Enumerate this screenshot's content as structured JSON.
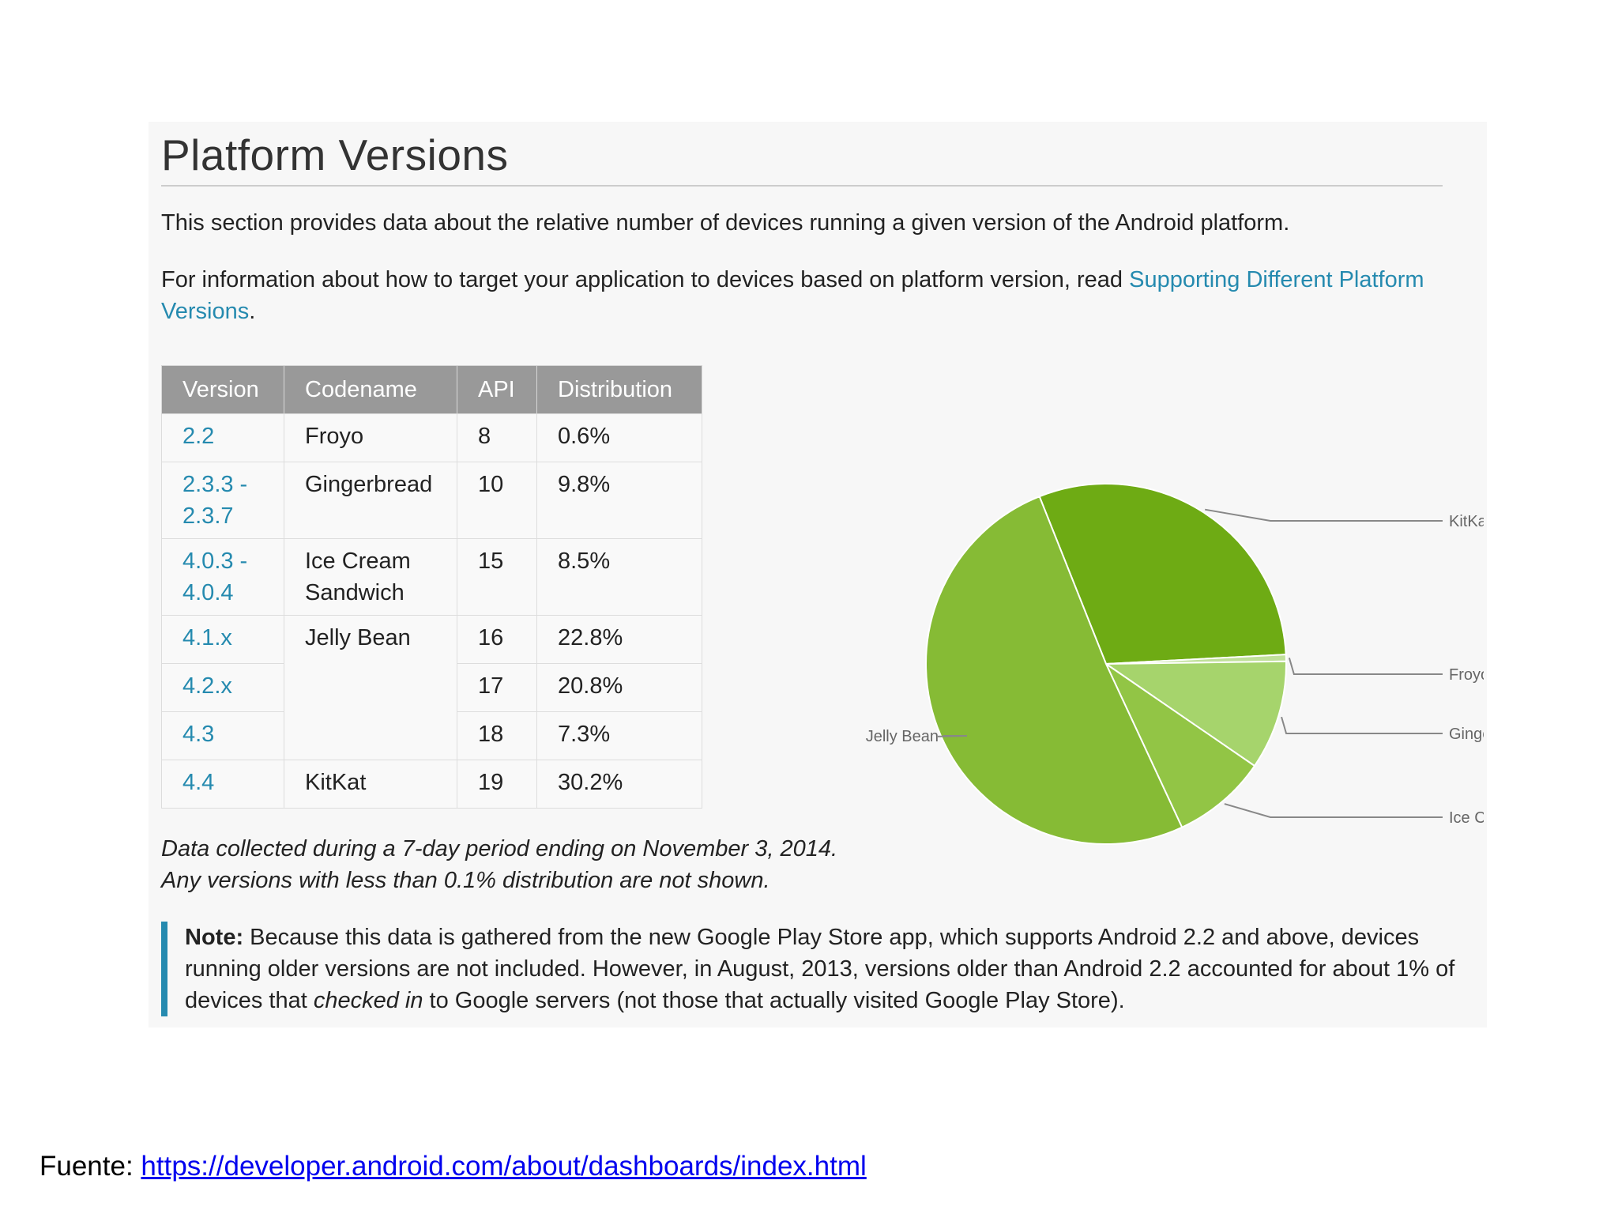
{
  "page": {
    "title": "Platform Versions",
    "intro": "This section provides data about the relative number of devices running a given version of the Android platform.",
    "info_prefix": "For information about how to target your application to devices based on platform version, read ",
    "info_link": "Supporting Different Platform Versions",
    "info_suffix": "."
  },
  "table": {
    "headers": [
      "Version",
      "Codename",
      "API",
      "Distribution"
    ],
    "rows": [
      {
        "version": "2.2",
        "codename": "Froyo",
        "api": "8",
        "distribution": "0.6%"
      },
      {
        "version": "2.3.3 - 2.3.7",
        "codename": "Gingerbread",
        "api": "10",
        "distribution": "9.8%"
      },
      {
        "version": "4.0.3 - 4.0.4",
        "codename": "Ice Cream Sandwich",
        "api": "15",
        "distribution": "8.5%"
      },
      {
        "version": "4.1.x",
        "codename": "Jelly Bean",
        "api": "16",
        "distribution": "22.8%"
      },
      {
        "version": "4.2.x",
        "codename": "",
        "api": "17",
        "distribution": "20.8%"
      },
      {
        "version": "4.3",
        "codename": "",
        "api": "18",
        "distribution": "7.3%"
      },
      {
        "version": "4.4",
        "codename": "KitKat",
        "api": "19",
        "distribution": "30.2%"
      }
    ]
  },
  "chart_data": {
    "type": "pie",
    "categories": [
      "KitKat",
      "Froyo",
      "Gingerbread",
      "Ice Cream Sandwich",
      "Jelly Bean"
    ],
    "values": [
      30.2,
      0.6,
      9.8,
      8.5,
      50.9
    ],
    "colors": [
      "#6eab14",
      "#c0e09a",
      "#a6d46c",
      "#92c545",
      "#86bb35"
    ],
    "legend": "labels beside slices"
  },
  "footnote": {
    "line1": "Data collected during a 7-day period ending on November 3, 2014.",
    "line2": "Any versions with less than 0.1% distribution are not shown."
  },
  "note": {
    "label": "Note:",
    "text_a": " Because this data is gathered from the new Google Play Store app, which supports Android 2.2 and above, devices running older versions are not included. However, in August, 2013, versions older than Android 2.2 accounted for about 1% of devices that ",
    "text_em": "checked in",
    "text_b": " to Google servers (not those that actually visited Google Play Store)."
  },
  "source": {
    "label": "Fuente: ",
    "url": "https://developer.android.com/about/dashboards/index.html"
  }
}
